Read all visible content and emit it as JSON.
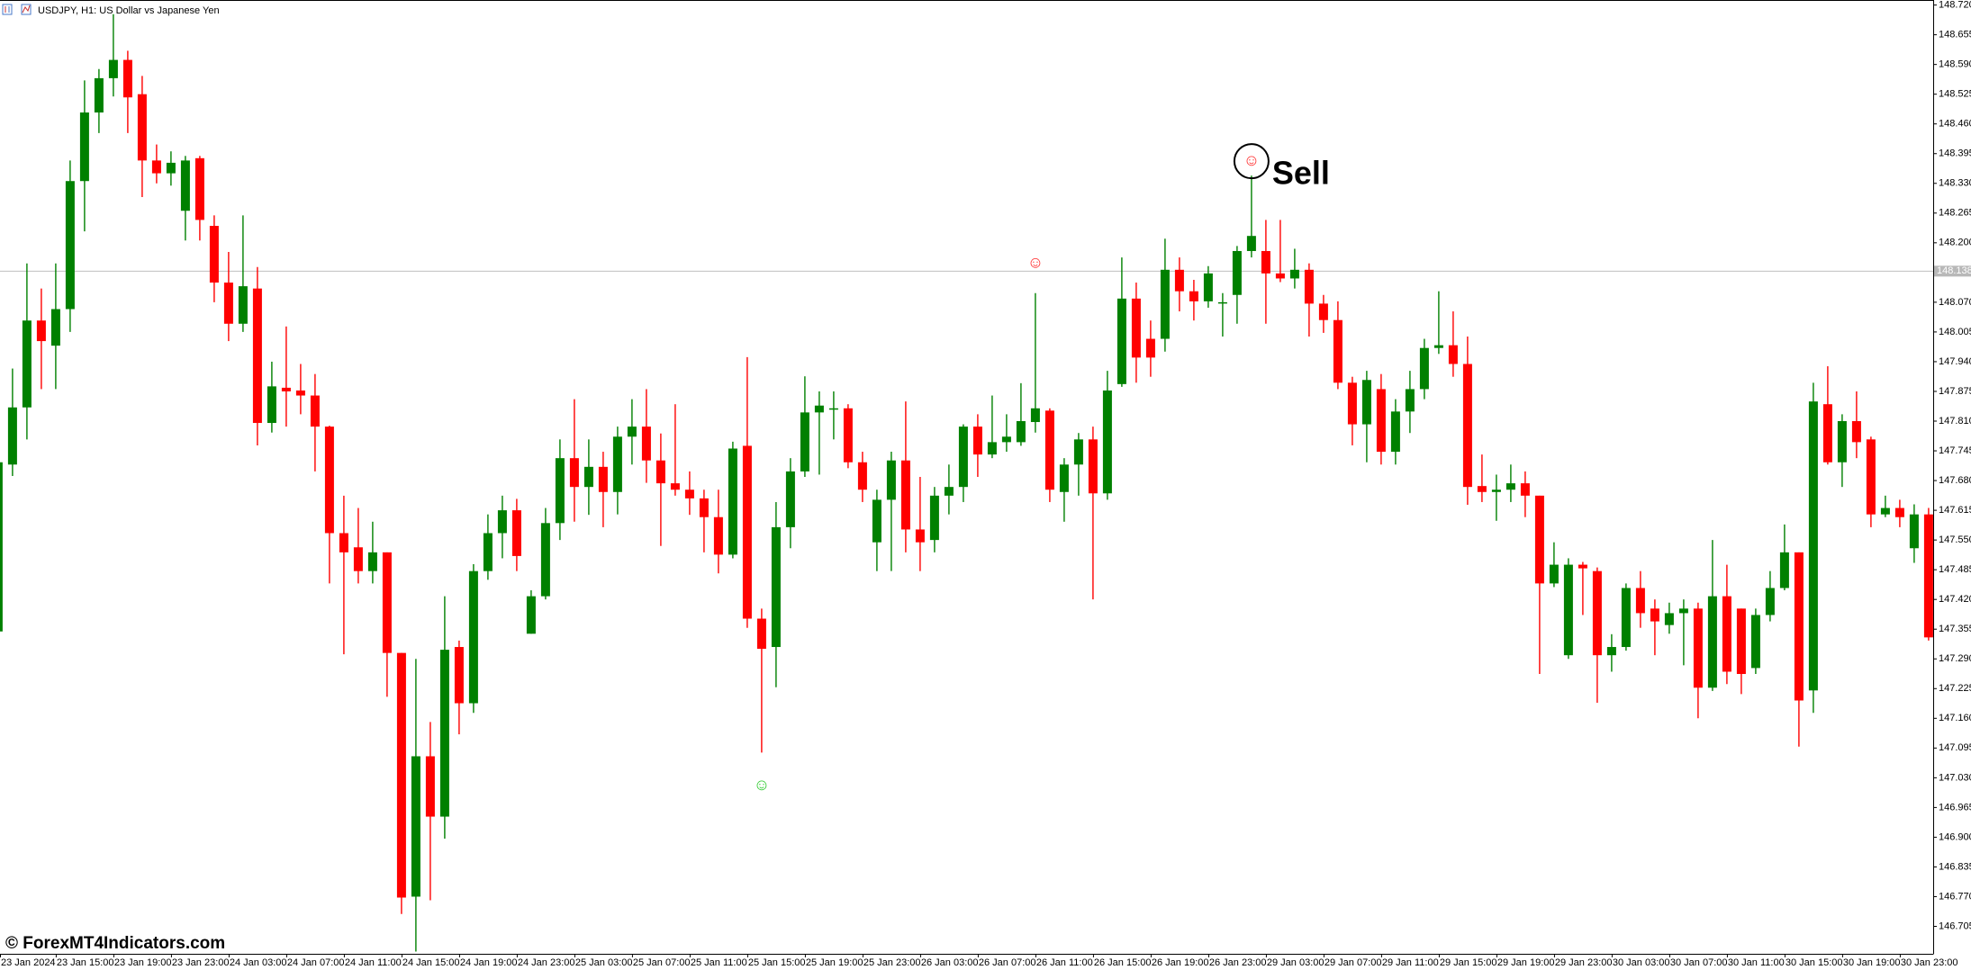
{
  "chart_data": {
    "type": "candlestick",
    "title": "USDJPY, H1:  US Dollar vs Japanese Yen",
    "watermark": "© ForexMT4Indicators.com",
    "up_color": "#008000",
    "down_color": "#ff0000",
    "categories": [
      "23 Jan 2024",
      null,
      null,
      null,
      "23 Jan 15:00",
      null,
      null,
      null,
      "23 Jan 19:00",
      null,
      null,
      null,
      "23 Jan 23:00",
      null,
      null,
      null,
      "24 Jan 03:00",
      null,
      null,
      null,
      "24 Jan 07:00",
      null,
      null,
      null,
      "24 Jan 11:00",
      null,
      null,
      null,
      "24 Jan 15:00",
      null,
      null,
      null,
      "24 Jan 19:00",
      null,
      null,
      null,
      "24 Jan 23:00",
      null,
      null,
      null,
      "25 Jan 03:00",
      null,
      null,
      null,
      "25 Jan 07:00",
      null,
      null,
      null,
      "25 Jan 11:00",
      null,
      null,
      null,
      "25 Jan 15:00",
      null,
      null,
      null,
      "25 Jan 19:00",
      null,
      null,
      null,
      "25 Jan 23:00",
      null,
      null,
      null,
      "26 Jan 03:00",
      null,
      null,
      null,
      "26 Jan 07:00",
      null,
      null,
      null,
      "26 Jan 11:00",
      null,
      null,
      null,
      "26 Jan 15:00",
      null,
      null,
      null,
      "26 Jan 19:00",
      null,
      null,
      null,
      "26 Jan 23:00",
      null,
      null,
      null,
      "29 Jan 03:00",
      null,
      null,
      null,
      "29 Jan 07:00",
      null,
      null,
      null,
      "29 Jan 11:00",
      null,
      null,
      null,
      "29 Jan 15:00",
      null,
      null,
      null,
      "29 Jan 19:00",
      null,
      null,
      null,
      "29 Jan 23:00",
      null,
      null,
      null,
      "30 Jan 03:00",
      null,
      null,
      null,
      "30 Jan 07:00",
      null,
      null,
      null,
      "30 Jan 11:00",
      null,
      null,
      null,
      "30 Jan 15:00",
      null,
      null,
      null,
      "30 Jan 19:00",
      null,
      null,
      null,
      "30 Jan 23:00",
      null,
      null
    ],
    "open": [
      147.35,
      147.715,
      147.84,
      148.03,
      147.975,
      148.055,
      148.335,
      148.485,
      148.56,
      148.6,
      148.525,
      148.38,
      148.352,
      148.27,
      148.385,
      148.237,
      148.113,
      148.023,
      148.1,
      147.806,
      147.883,
      147.877,
      147.866,
      147.798,
      147.565,
      147.534,
      147.482,
      147.523,
      147.303,
      146.77,
      147.077,
      146.945,
      147.316,
      147.193,
      147.482,
      147.565,
      147.615,
      147.345,
      147.427,
      147.587,
      147.729,
      147.666,
      147.71,
      147.655,
      147.776,
      147.798,
      147.724,
      147.674,
      147.66,
      147.641,
      147.6,
      147.518,
      147.756,
      147.378,
      147.316,
      147.578,
      147.7,
      147.829,
      147.838,
      147.838,
      147.72,
      147.545,
      147.638,
      147.724,
      147.573,
      147.55,
      147.647,
      147.666,
      147.798,
      147.737,
      147.764,
      147.764,
      147.808,
      147.833,
      147.655,
      147.715,
      147.77,
      147.652,
      147.891,
      148.078,
      147.99,
      147.99,
      148.141,
      148.094,
      148.072,
      148.07,
      148.086,
      148.182,
      148.182,
      148.133,
      148.122,
      148.141,
      148.067,
      148.031,
      147.894,
      147.803,
      147.88,
      147.743,
      147.831,
      147.88,
      147.97,
      147.976,
      147.935,
      147.668,
      147.655,
      147.66,
      147.674,
      147.647,
      147.455,
      147.298,
      147.496,
      147.482,
      147.298,
      147.316,
      147.445,
      147.4,
      147.364,
      147.39,
      147.4,
      147.227,
      147.427,
      147.4,
      147.27,
      147.386,
      147.445,
      147.523,
      147.221,
      147.847,
      147.72,
      147.81,
      147.77,
      147.606,
      147.62,
      147.532,
      147.606
    ],
    "close": [
      147.72,
      147.84,
      148.03,
      147.985,
      148.055,
      148.335,
      148.485,
      148.56,
      148.6,
      148.518,
      148.38,
      148.352,
      148.375,
      148.38,
      148.25,
      148.113,
      148.023,
      148.105,
      147.806,
      147.886,
      147.875,
      147.866,
      147.798,
      147.565,
      147.523,
      147.482,
      147.523,
      147.303,
      146.768,
      147.077,
      146.945,
      147.31,
      147.193,
      147.482,
      147.565,
      147.615,
      147.515,
      147.427,
      147.587,
      147.729,
      147.666,
      147.71,
      147.655,
      147.776,
      147.798,
      147.724,
      147.674,
      147.66,
      147.641,
      147.6,
      147.518,
      147.75,
      147.378,
      147.312,
      147.578,
      147.7,
      147.829,
      147.844,
      147.838,
      147.72,
      147.66,
      147.638,
      147.724,
      147.573,
      147.545,
      147.647,
      147.666,
      147.798,
      147.737,
      147.764,
      147.776,
      147.81,
      147.838,
      147.66,
      147.715,
      147.77,
      147.652,
      147.877,
      148.078,
      147.949,
      147.949,
      148.141,
      148.094,
      148.072,
      148.133,
      148.07,
      148.182,
      148.215,
      148.133,
      148.122,
      148.141,
      148.067,
      148.031,
      147.894,
      147.803,
      147.9,
      147.743,
      147.831,
      147.88,
      147.97,
      147.976,
      147.935,
      147.666,
      147.655,
      147.66,
      147.674,
      147.647,
      147.455,
      147.496,
      147.496,
      147.488,
      147.298,
      147.316,
      147.445,
      147.39,
      147.372,
      147.39,
      147.4,
      147.227,
      147.427,
      147.262,
      147.257,
      147.386,
      147.445,
      147.523,
      147.199,
      147.853,
      147.72,
      147.81,
      147.764,
      147.606,
      147.62,
      147.6,
      147.606,
      147.337
    ],
    "high": [
      147.72,
      147.925,
      148.155,
      148.1,
      148.155,
      148.38,
      148.555,
      148.58,
      148.7,
      148.62,
      148.565,
      148.415,
      148.4,
      148.39,
      148.39,
      148.26,
      148.18,
      148.26,
      148.147,
      147.94,
      148.017,
      147.935,
      147.913,
      147.8,
      147.647,
      147.62,
      147.59,
      147.523,
      147.303,
      147.29,
      147.152,
      147.427,
      147.33,
      147.497,
      147.606,
      147.647,
      147.64,
      147.44,
      147.62,
      147.77,
      147.858,
      147.77,
      147.743,
      147.798,
      147.858,
      147.88,
      147.783,
      147.847,
      147.7,
      147.66,
      147.66,
      147.765,
      147.95,
      147.4,
      147.633,
      147.729,
      147.908,
      147.875,
      147.875,
      147.847,
      147.743,
      147.66,
      147.743,
      147.853,
      147.688,
      147.666,
      147.715,
      147.803,
      147.825,
      147.866,
      147.825,
      147.893,
      148.09,
      147.838,
      147.729,
      147.784,
      147.798,
      147.92,
      148.168,
      148.113,
      148.03,
      148.209,
      148.168,
      148.119,
      148.149,
      148.09,
      148.193,
      148.347,
      148.25,
      148.25,
      148.187,
      148.155,
      148.086,
      148.072,
      147.907,
      147.92,
      147.913,
      147.858,
      147.92,
      147.99,
      148.094,
      148.05,
      147.995,
      147.737,
      147.693,
      147.715,
      147.7,
      147.647,
      147.545,
      147.51,
      147.502,
      147.49,
      147.344,
      147.455,
      147.482,
      147.42,
      147.413,
      147.42,
      147.413,
      147.55,
      147.496,
      147.4,
      147.4,
      147.482,
      147.584,
      147.523,
      147.894,
      147.93,
      147.825,
      147.875,
      147.776,
      147.647,
      147.638,
      147.628,
      147.62
    ],
    "low": [
      147.35,
      147.69,
      147.77,
      147.88,
      147.88,
      148.005,
      148.225,
      148.44,
      148.52,
      148.44,
      148.3,
      148.33,
      148.325,
      148.205,
      148.205,
      148.07,
      147.985,
      148.005,
      147.757,
      147.785,
      147.798,
      147.825,
      147.7,
      147.455,
      147.3,
      147.455,
      147.455,
      147.207,
      146.732,
      146.65,
      146.762,
      146.897,
      147.125,
      147.172,
      147.463,
      147.51,
      147.482,
      147.345,
      147.42,
      147.55,
      147.59,
      147.605,
      147.578,
      147.606,
      147.715,
      147.675,
      147.537,
      147.647,
      147.605,
      147.523,
      147.477,
      147.51,
      147.358,
      147.085,
      147.228,
      147.532,
      147.688,
      147.693,
      147.77,
      147.707,
      147.633,
      147.482,
      147.482,
      147.523,
      147.482,
      147.523,
      147.606,
      147.633,
      147.688,
      147.729,
      147.743,
      147.756,
      147.785,
      147.633,
      147.59,
      147.647,
      147.42,
      147.638,
      147.885,
      147.894,
      147.907,
      147.962,
      148.05,
      148.03,
      148.058,
      147.995,
      148.023,
      148.168,
      148.023,
      148.114,
      148.1,
      147.995,
      148.003,
      147.88,
      147.757,
      147.72,
      147.715,
      147.715,
      147.784,
      147.858,
      147.957,
      147.907,
      147.627,
      147.633,
      147.592,
      147.633,
      147.6,
      147.257,
      147.447,
      147.29,
      147.386,
      147.194,
      147.262,
      147.308,
      147.358,
      147.298,
      147.345,
      147.276,
      147.16,
      147.22,
      147.235,
      147.213,
      147.257,
      147.372,
      147.44,
      147.098,
      147.172,
      147.715,
      147.666,
      147.729,
      147.578,
      147.6,
      147.578,
      147.5,
      147.33
    ],
    "ylim": [
      146.645,
      148.731
    ],
    "yticks": [
      {
        "value": 148.72,
        "label": "148.720"
      },
      148.655,
      {
        "value": 148.59,
        "label": "148.590"
      },
      148.525,
      {
        "value": 148.46,
        "label": "148.460"
      },
      148.395,
      {
        "value": 148.33,
        "label": "148.330"
      },
      148.265,
      {
        "value": 148.2,
        "label": "148.200"
      },
      148.135,
      {
        "value": 148.07,
        "label": "148.070"
      },
      148.005,
      {
        "value": 147.94,
        "label": "147.940"
      },
      147.875,
      {
        "value": 147.81,
        "label": "147.810"
      },
      147.745,
      {
        "value": 147.68,
        "label": "147.680"
      },
      147.615,
      {
        "value": 147.55,
        "label": "147.550"
      },
      147.485,
      {
        "value": 147.42,
        "label": "147.420"
      },
      147.355,
      {
        "value": 147.29,
        "label": "147.290"
      },
      147.225,
      {
        "value": 147.16,
        "label": "147.160"
      },
      147.095,
      {
        "value": 147.03,
        "label": "147.030"
      },
      146.965,
      {
        "value": 146.9,
        "label": "146.900"
      },
      146.835,
      {
        "value": 146.77,
        "label": "146.770"
      },
      146.705
    ],
    "current_price": 148.138,
    "markers": [
      {
        "index": 53,
        "symbol": "☺",
        "color": "#33cc33",
        "position": "below"
      },
      {
        "index": 72,
        "symbol": "☺",
        "color": "#ff3333",
        "position": "above"
      },
      {
        "index": 87,
        "symbol": "☺",
        "color": "#ff3333",
        "position": "above",
        "label": "Sell"
      }
    ]
  }
}
